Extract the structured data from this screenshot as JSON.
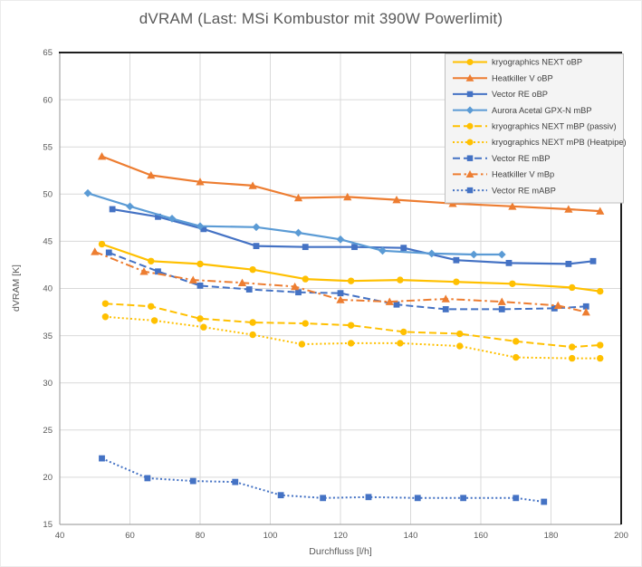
{
  "title": "dVRAM (Last: MSi Kombustor mit 390W Powerlimit)",
  "chart_data": {
    "type": "line",
    "title": "dVRAM (Last: MSi Kombustor mit 390W Powerlimit)",
    "xlabel": "Durchfluss [l/h]",
    "ylabel": "dVRAM [K]",
    "xlim": [
      40,
      200
    ],
    "ylim": [
      15,
      65
    ],
    "xticks": [
      40,
      60,
      80,
      100,
      120,
      140,
      160,
      180,
      200
    ],
    "yticks": [
      15,
      20,
      25,
      30,
      35,
      40,
      45,
      50,
      55,
      60,
      65
    ],
    "grid": true,
    "legend_position": "top-right",
    "colors": {
      "gold": "#FFC000",
      "orange": "#ED7D31",
      "blue": "#4472C4",
      "light_blue": "#5B9BD5",
      "gridline": "#D9D9D9",
      "axis_line": "#A6A6A6",
      "plot_border_dark": "#1F1F1F",
      "text": "#595959",
      "legend_text": "#404040",
      "legend_bg": "#F4F4F4",
      "legend_border": "#BFBFBF"
    },
    "series": [
      {
        "name": "kryographics NEXT oBP",
        "color": "#FFC000",
        "line": "solid",
        "marker": "circle",
        "points": [
          [
            52,
            44.7
          ],
          [
            66,
            42.9
          ],
          [
            80,
            42.6
          ],
          [
            95,
            42.0
          ],
          [
            110,
            41.0
          ],
          [
            123,
            40.8
          ],
          [
            137,
            40.9
          ],
          [
            153,
            40.7
          ],
          [
            169,
            40.5
          ],
          [
            186,
            40.1
          ],
          [
            194,
            39.7
          ]
        ]
      },
      {
        "name": "Heatkiller V oBP",
        "color": "#ED7D31",
        "line": "solid",
        "marker": "triangle",
        "points": [
          [
            52,
            54.0
          ],
          [
            66,
            52.0
          ],
          [
            80,
            51.3
          ],
          [
            95,
            50.9
          ],
          [
            108,
            49.6
          ],
          [
            122,
            49.7
          ],
          [
            136,
            49.4
          ],
          [
            152,
            49.0
          ],
          [
            169,
            48.7
          ],
          [
            185,
            48.4
          ],
          [
            194,
            48.2
          ]
        ]
      },
      {
        "name": "Vector RE oBP",
        "color": "#4472C4",
        "line": "solid",
        "marker": "square",
        "points": [
          [
            55,
            48.4
          ],
          [
            68,
            47.6
          ],
          [
            81,
            46.3
          ],
          [
            96,
            44.5
          ],
          [
            110,
            44.4
          ],
          [
            124,
            44.4
          ],
          [
            138,
            44.3
          ],
          [
            153,
            43.0
          ],
          [
            168,
            42.7
          ],
          [
            185,
            42.6
          ],
          [
            192,
            42.9
          ]
        ]
      },
      {
        "name": "Aurora Acetal GPX-N mBP",
        "color": "#5B9BD5",
        "line": "solid",
        "marker": "diamond",
        "points": [
          [
            48,
            50.1
          ],
          [
            60,
            48.7
          ],
          [
            72,
            47.4
          ],
          [
            80,
            46.6
          ],
          [
            96,
            46.5
          ],
          [
            108,
            45.9
          ],
          [
            120,
            45.2
          ],
          [
            132,
            44.0
          ],
          [
            146,
            43.7
          ],
          [
            158,
            43.6
          ],
          [
            166,
            43.6
          ]
        ]
      },
      {
        "name": "kryographics NEXT mBP (passiv)",
        "color": "#FFC000",
        "line": "dash",
        "marker": "circle",
        "points": [
          [
            53,
            38.4
          ],
          [
            66,
            38.1
          ],
          [
            80,
            36.8
          ],
          [
            95,
            36.4
          ],
          [
            110,
            36.3
          ],
          [
            123,
            36.1
          ],
          [
            138,
            35.4
          ],
          [
            154,
            35.2
          ],
          [
            170,
            34.4
          ],
          [
            186,
            33.8
          ],
          [
            194,
            34.0
          ]
        ]
      },
      {
        "name": "kryographics NEXT mPB (Heatpipe)",
        "color": "#FFC000",
        "line": "dot",
        "marker": "circle",
        "points": [
          [
            53,
            37.0
          ],
          [
            67,
            36.6
          ],
          [
            81,
            35.9
          ],
          [
            95,
            35.1
          ],
          [
            109,
            34.1
          ],
          [
            123,
            34.2
          ],
          [
            137,
            34.2
          ],
          [
            154,
            33.9
          ],
          [
            170,
            32.7
          ],
          [
            186,
            32.6
          ],
          [
            194,
            32.6
          ]
        ]
      },
      {
        "name": "Vector RE mBP",
        "color": "#4472C4",
        "line": "dash",
        "marker": "square",
        "points": [
          [
            54,
            43.8
          ],
          [
            68,
            41.8
          ],
          [
            80,
            40.3
          ],
          [
            94,
            39.9
          ],
          [
            108,
            39.6
          ],
          [
            120,
            39.5
          ],
          [
            136,
            38.3
          ],
          [
            150,
            37.8
          ],
          [
            166,
            37.8
          ],
          [
            181,
            37.9
          ],
          [
            190,
            38.1
          ]
        ]
      },
      {
        "name": "Heatkiller V mBp",
        "color": "#ED7D31",
        "line": "dashdot",
        "marker": "triangle",
        "points": [
          [
            50,
            43.9
          ],
          [
            64,
            41.8
          ],
          [
            78,
            40.9
          ],
          [
            92,
            40.6
          ],
          [
            107,
            40.2
          ],
          [
            120,
            38.8
          ],
          [
            134,
            38.6
          ],
          [
            150,
            38.9
          ],
          [
            166,
            38.6
          ],
          [
            182,
            38.2
          ],
          [
            190,
            37.5
          ]
        ]
      },
      {
        "name": "Vector RE mABP",
        "color": "#4472C4",
        "line": "dot",
        "marker": "square",
        "points": [
          [
            52,
            22.0
          ],
          [
            65,
            19.9
          ],
          [
            78,
            19.6
          ],
          [
            90,
            19.5
          ],
          [
            103,
            18.1
          ],
          [
            115,
            17.8
          ],
          [
            128,
            17.9
          ],
          [
            142,
            17.8
          ],
          [
            155,
            17.8
          ],
          [
            170,
            17.8
          ],
          [
            178,
            17.4
          ]
        ]
      }
    ]
  }
}
